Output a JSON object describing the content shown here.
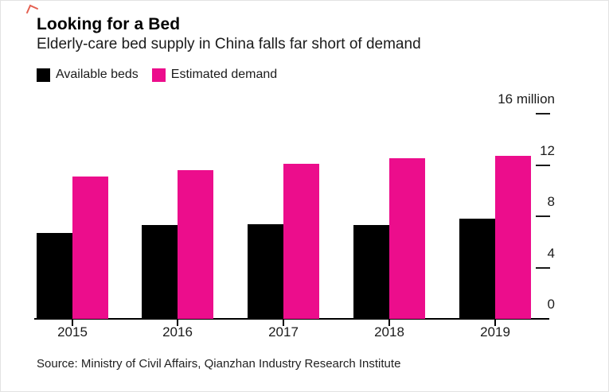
{
  "chart_data": {
    "type": "bar",
    "title": "Looking for a Bed",
    "subtitle": "Elderly-care bed supply in China falls far short of demand",
    "categories": [
      "2015",
      "2016",
      "2017",
      "2018",
      "2019"
    ],
    "series": [
      {
        "name": "Available beds",
        "color": "#000000",
        "values": [
          6.7,
          7.3,
          7.4,
          7.3,
          7.8
        ]
      },
      {
        "name": "Estimated demand",
        "color": "#ec0d8c",
        "values": [
          11.1,
          11.6,
          12.1,
          12.5,
          12.7
        ]
      }
    ],
    "unit": "million",
    "ylim": [
      0,
      16
    ],
    "y_ticks": [
      {
        "value": 16,
        "label": "16 million"
      },
      {
        "value": 12,
        "label": "12"
      },
      {
        "value": 8,
        "label": "8"
      },
      {
        "value": 4,
        "label": "4"
      },
      {
        "value": 0,
        "label": "0"
      }
    ],
    "axis_side": "right",
    "legend_position": "top-left",
    "grid": false,
    "source": "Source: Ministry of Civil Affairs, Qianzhan Industry Research Institute"
  }
}
